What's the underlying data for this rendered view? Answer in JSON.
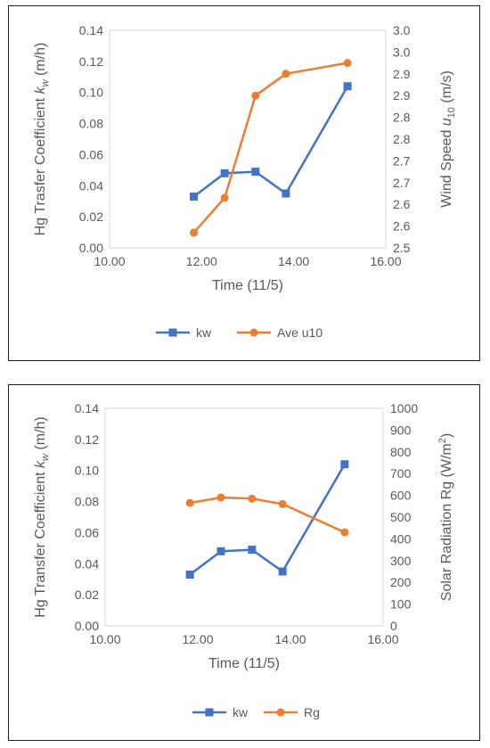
{
  "chart_data": [
    {
      "type": "line",
      "title": "",
      "xlabel": "Time (11/5)",
      "ylabel": "Hg Trasfer Coefficient",
      "ylabel_symbol": "k",
      "ylabel_sub": "w",
      "ylabel_unit": "(m/h)",
      "y2label": "Wind Speed",
      "y2label_symbol": "u",
      "y2label_sub": "10",
      "y2label_unit": "(m/s)",
      "xlim": [
        10,
        16
      ],
      "ylim": [
        0,
        0.14
      ],
      "y2lim": [
        2.5,
        3.0
      ],
      "x_ticks": [
        "10.00",
        "12.00",
        "14.00",
        "16.00"
      ],
      "y_ticks": [
        "0.00",
        "0.02",
        "0.04",
        "0.06",
        "0.08",
        "0.10",
        "0.12",
        "0.14"
      ],
      "y2_ticks": [
        "2.5",
        "2.6",
        "2.6",
        "2.7",
        "2.7",
        "2.8",
        "2.8",
        "2.9",
        "2.9",
        "3.0",
        "3.0"
      ],
      "grid": "none",
      "legend": "bottom",
      "series": [
        {
          "name": "kw",
          "axis": "left",
          "marker": "square",
          "color": "#4472C4",
          "x": [
            11.83,
            12.5,
            13.17,
            13.83,
            15.17
          ],
          "y": [
            0.033,
            0.048,
            0.049,
            0.035,
            0.104
          ]
        },
        {
          "name": "Ave u10",
          "axis": "right",
          "marker": "circle",
          "color": "#ED7D31",
          "x": [
            11.83,
            12.5,
            13.17,
            13.83,
            15.17
          ],
          "y": [
            2.535,
            2.615,
            2.85,
            2.9,
            2.925
          ]
        }
      ]
    },
    {
      "type": "line",
      "title": "",
      "xlabel": "Time (11/5)",
      "ylabel": "Hg Transfer Coefficient",
      "ylabel_symbol": "k",
      "ylabel_sub": "w",
      "ylabel_unit": "(m/h)",
      "y2label": "Solar Radiation Rg",
      "y2label_unit_prefix": "(W/m",
      "y2label_sup": "2",
      "y2label_unit_suffix": ")",
      "xlim": [
        10,
        16
      ],
      "ylim": [
        0,
        0.14
      ],
      "y2lim": [
        0,
        1000
      ],
      "x_ticks": [
        "10.00",
        "12.00",
        "14.00",
        "16.00"
      ],
      "y_ticks": [
        "0.00",
        "0.02",
        "0.04",
        "0.06",
        "0.08",
        "0.10",
        "0.12",
        "0.14"
      ],
      "y2_ticks": [
        "0",
        "100",
        "200",
        "300",
        "400",
        "500",
        "600",
        "700",
        "800",
        "900",
        "1000"
      ],
      "grid": "none",
      "legend": "bottom",
      "series": [
        {
          "name": "kw",
          "axis": "left",
          "marker": "square",
          "color": "#4472C4",
          "x": [
            11.83,
            12.5,
            13.17,
            13.83,
            15.17
          ],
          "y": [
            0.033,
            0.048,
            0.049,
            0.035,
            0.104
          ]
        },
        {
          "name": "Rg",
          "axis": "right",
          "marker": "circle",
          "color": "#ED7D31",
          "x": [
            11.83,
            12.5,
            13.17,
            13.83,
            15.17
          ],
          "y": [
            565,
            590,
            585,
            560,
            430
          ]
        }
      ]
    }
  ]
}
